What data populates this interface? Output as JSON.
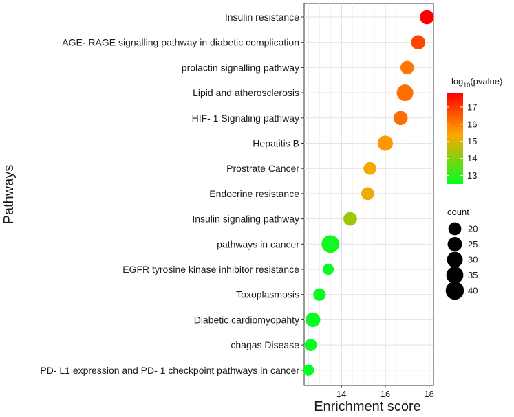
{
  "chart_data": {
    "type": "scatter",
    "xlabel": "Enrichment score",
    "ylabel": "Pathways",
    "xlim": [
      12.3,
      18.2
    ],
    "xticks": [
      14,
      16,
      18
    ],
    "grid": true,
    "categories": [
      "Insulin resistance",
      "AGE- RAGE signalling pathway in diabetic complication",
      "prolactin signalling pathway",
      "Lipid and atherosclerosis",
      "HIF- 1 Signaling pathway",
      "Hepatitis B",
      "Prostrate Cancer",
      "Endocrine resistance",
      "Insulin signaling pathway",
      "pathways in cancer",
      "EGFR tyrosine kinase inhibitor resistance",
      "Toxoplasmosis",
      "Diabetic cardiomyopahty",
      "chagas Disease",
      "PD- L1 expression and PD- 1 checkpoint pathways in cancer"
    ],
    "enrichment_score": [
      17.9,
      17.5,
      17.0,
      16.9,
      16.7,
      16.0,
      15.3,
      15.2,
      14.4,
      13.5,
      13.4,
      13.0,
      12.7,
      12.6,
      12.5
    ],
    "count": [
      24,
      24,
      22,
      33,
      24,
      28,
      20,
      20,
      22,
      38,
      15,
      19,
      26,
      18,
      15
    ],
    "neg_log10_pvalue": [
      17.8,
      16.8,
      16.1,
      16.2,
      16.2,
      15.6,
      15.3,
      15.2,
      14.3,
      12.7,
      12.6,
      12.6,
      12.6,
      12.6,
      12.5
    ],
    "color_legend": {
      "title_prefix": "- log",
      "title_sub": "10",
      "title_suffix": "(pvalue)",
      "range": [
        12.5,
        17.8
      ],
      "ticks": [
        13,
        14,
        15,
        16,
        17
      ],
      "low_color": "#00ff22",
      "mid_color": "#ffa500",
      "high_color": "#ff0000"
    },
    "size_legend": {
      "title": "count",
      "values": [
        20,
        25,
        30,
        35,
        40
      ]
    },
    "point_color_reference": "#000000"
  }
}
